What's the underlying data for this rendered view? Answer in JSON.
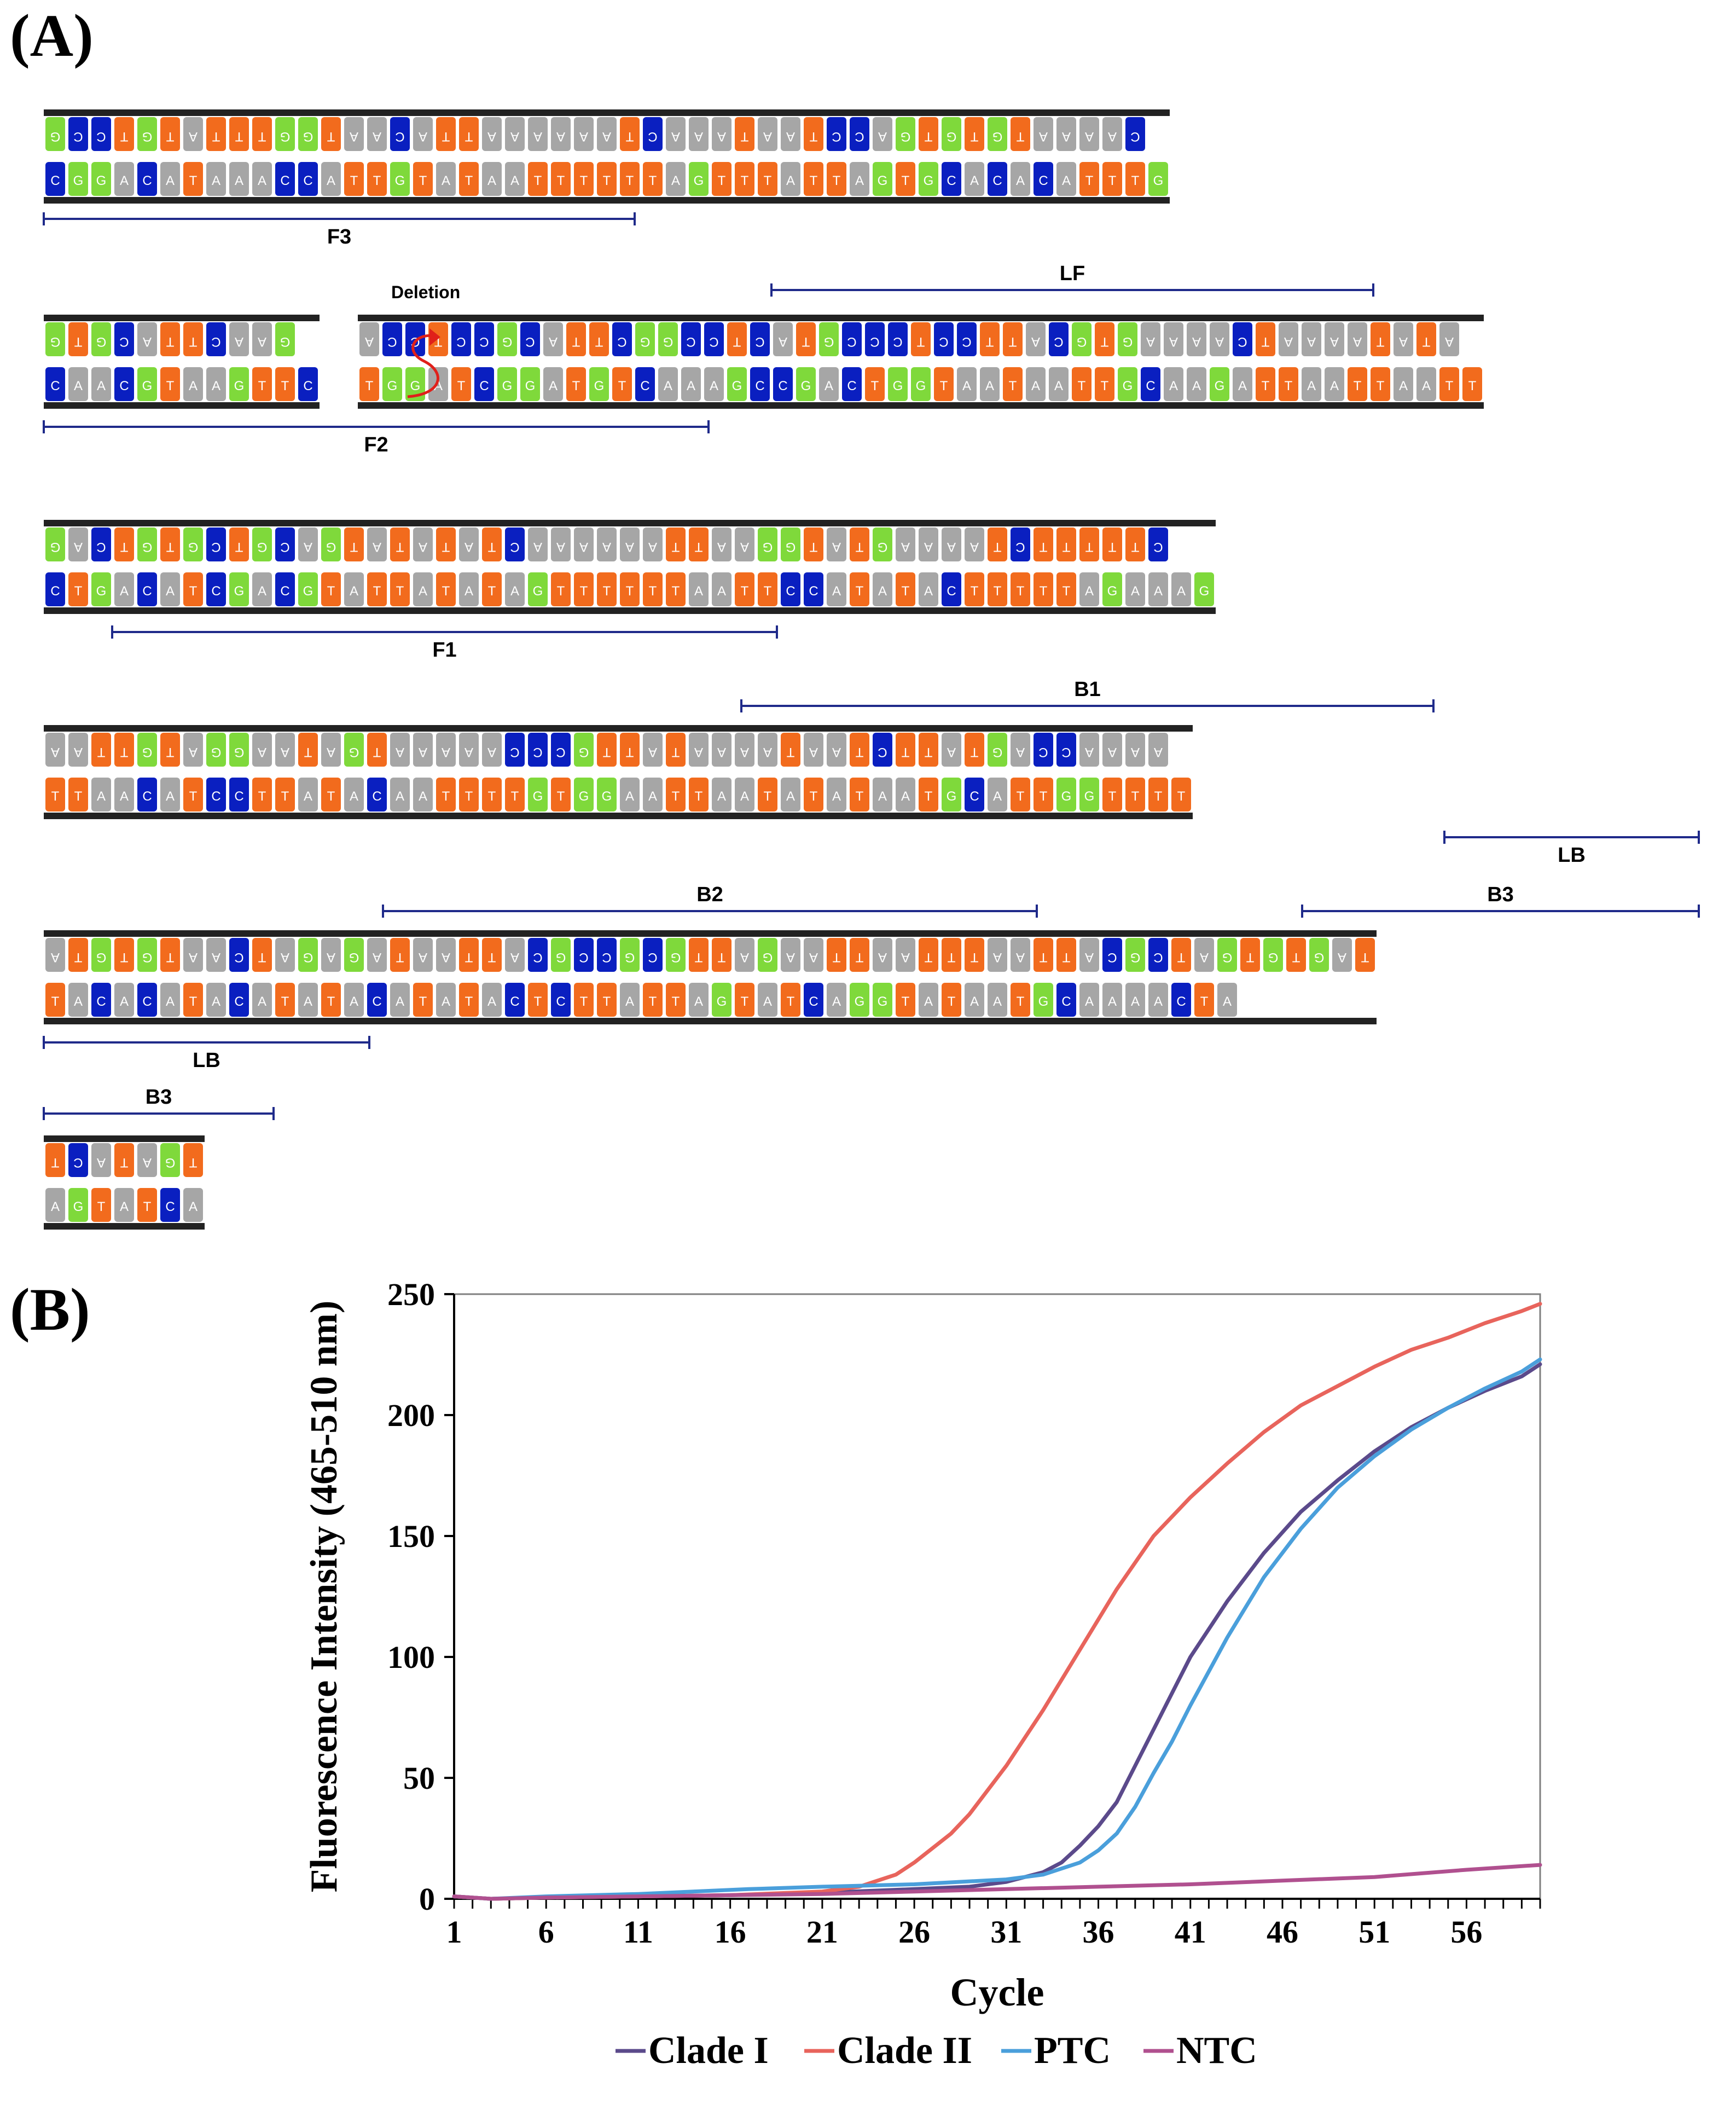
{
  "panel_a": {
    "label": "(A)",
    "colors": {
      "A": "#a6a6a6",
      "T": "#f26b1d",
      "G": "#7fd93b",
      "C": "#0a1fc0",
      "backbone": "#222222",
      "bracket": "#1f2a8a",
      "arrow": "#e0201a"
    },
    "rows": [
      {
        "top": "GCCTGTATTTGGTAACATTAAAAAATCAAATAATCCAGTGTGTAAAAC",
        "bottom": "CGGACATAAACCATTGTATAATTTTTTAGTTTATTAGTGCACACATTTG"
      },
      {
        "segments": [
          {
            "top": "GTGCATTCAAG",
            "bottom": "CAACGTAAGTTC"
          },
          {
            "top": "ACCTCCGCATTCGGCCTCATGCCCTCCTTACGTGAAAACTAAAATATA",
            "bottom": "TGGATCGGATGTCAAAGCCGACTGGTAATAATTGCAAGATTAATTAATT"
          }
        ]
      },
      {
        "top": "GACTGTGCTGCAGTATATATCAAAAAATTAAGGTATGAAAATCTTTTTC",
        "bottom": "CTGACATCGACGTATTATATAGTTTTTTAATTCCATATACTTTTTAGAAAG"
      },
      {
        "top": "AATTGTAGGAATAGTAAAAACCCGTTATAAAATAATCTTATGACCAAAA",
        "bottom": "TTAACATCCTTATACAATTTTGTGGAATTAATATATAATGCATTGGTTTT"
      },
      {
        "top": "ATGTGTAACTAGAGATAATTACGCCGCGTTAGAATTAATTTAATTACGCTAGTGTGAT",
        "bottom": "TACACATACATATACATATACTCTTATTAGTATCAGGTATAATGCAAAACTA"
      },
      {
        "top": "TCATAGT",
        "bottom": "AGTATCA"
      }
    ],
    "markers": [
      {
        "id": "F3",
        "label": "F3"
      },
      {
        "id": "LF",
        "label": "LF"
      },
      {
        "id": "F2",
        "label": "F2"
      },
      {
        "id": "F1",
        "label": "F1"
      },
      {
        "id": "B1",
        "label": "B1"
      },
      {
        "id": "LB1",
        "label": "LB"
      },
      {
        "id": "B2",
        "label": "B2"
      },
      {
        "id": "B3a",
        "label": "B3"
      },
      {
        "id": "LB2",
        "label": "LB"
      },
      {
        "id": "B3b",
        "label": "B3"
      }
    ],
    "deletion_label": "Deletion"
  },
  "panel_b": {
    "label": "(B)"
  },
  "chart_data": {
    "type": "line",
    "xlabel": "Cycle",
    "ylabel": "Fluorescence Intensity (465-510 nm)",
    "xlim": [
      1,
      60
    ],
    "ylim": [
      0,
      250
    ],
    "x_ticks": [
      1,
      6,
      11,
      16,
      21,
      26,
      31,
      36,
      41,
      46,
      51,
      56
    ],
    "y_ticks": [
      0,
      50,
      100,
      150,
      200,
      250
    ],
    "legend_position": "bottom",
    "series": [
      {
        "name": "Clade I",
        "color": "#5b4a8b",
        "points": [
          [
            1,
            1
          ],
          [
            3,
            0
          ],
          [
            6,
            0.5
          ],
          [
            11,
            1
          ],
          [
            16,
            1.5
          ],
          [
            21,
            2.5
          ],
          [
            26,
            4
          ],
          [
            29,
            5
          ],
          [
            31,
            7
          ],
          [
            33,
            11
          ],
          [
            34,
            15
          ],
          [
            35,
            22
          ],
          [
            36,
            30
          ],
          [
            37,
            40
          ],
          [
            38,
            55
          ],
          [
            39,
            70
          ],
          [
            40,
            85
          ],
          [
            41,
            100
          ],
          [
            43,
            123
          ],
          [
            45,
            143
          ],
          [
            47,
            160
          ],
          [
            49,
            173
          ],
          [
            51,
            185
          ],
          [
            53,
            195
          ],
          [
            55,
            203
          ],
          [
            57,
            210
          ],
          [
            59,
            216
          ],
          [
            60,
            221
          ]
        ]
      },
      {
        "name": "Clade II",
        "color": "#e8645c",
        "points": [
          [
            1,
            1
          ],
          [
            3,
            0
          ],
          [
            6,
            0.5
          ],
          [
            11,
            1
          ],
          [
            16,
            1.5
          ],
          [
            21,
            3
          ],
          [
            23,
            5
          ],
          [
            25,
            10
          ],
          [
            26,
            15
          ],
          [
            28,
            27
          ],
          [
            29,
            35
          ],
          [
            31,
            55
          ],
          [
            33,
            78
          ],
          [
            35,
            103
          ],
          [
            37,
            128
          ],
          [
            39,
            150
          ],
          [
            41,
            166
          ],
          [
            43,
            180
          ],
          [
            45,
            193
          ],
          [
            47,
            204
          ],
          [
            49,
            212
          ],
          [
            51,
            220
          ],
          [
            53,
            227
          ],
          [
            55,
            232
          ],
          [
            57,
            238
          ],
          [
            59,
            243
          ],
          [
            60,
            246
          ]
        ]
      },
      {
        "name": "PTC",
        "color": "#4a9fdb",
        "points": [
          [
            1,
            1
          ],
          [
            3,
            0
          ],
          [
            6,
            1
          ],
          [
            11,
            2
          ],
          [
            14,
            3
          ],
          [
            17,
            4
          ],
          [
            21,
            5
          ],
          [
            26,
            6
          ],
          [
            31,
            8
          ],
          [
            33,
            10
          ],
          [
            35,
            15
          ],
          [
            36,
            20
          ],
          [
            37,
            27
          ],
          [
            38,
            38
          ],
          [
            39,
            52
          ],
          [
            40,
            65
          ],
          [
            41,
            80
          ],
          [
            43,
            108
          ],
          [
            45,
            133
          ],
          [
            47,
            153
          ],
          [
            49,
            170
          ],
          [
            51,
            183
          ],
          [
            53,
            194
          ],
          [
            55,
            203
          ],
          [
            57,
            211
          ],
          [
            59,
            218
          ],
          [
            60,
            223
          ]
        ]
      },
      {
        "name": "NTC",
        "color": "#b0508f",
        "points": [
          [
            1,
            1
          ],
          [
            3,
            0
          ],
          [
            6,
            0.5
          ],
          [
            11,
            1
          ],
          [
            16,
            1.5
          ],
          [
            21,
            2
          ],
          [
            26,
            3
          ],
          [
            31,
            4
          ],
          [
            36,
            5
          ],
          [
            41,
            6
          ],
          [
            46,
            7.5
          ],
          [
            51,
            9
          ],
          [
            56,
            12
          ],
          [
            60,
            14
          ]
        ]
      }
    ]
  }
}
